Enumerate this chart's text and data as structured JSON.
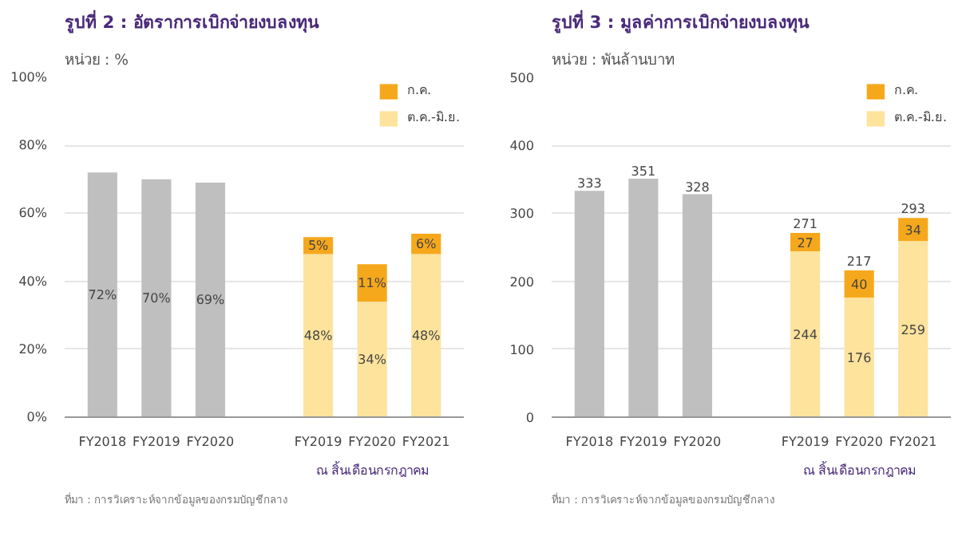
{
  "chart_data": [
    {
      "type": "bar",
      "title": "รูปที่ 2 : อัตราการเบิกจ่ายงบลงทุน",
      "subtitle": "หน่วย : %",
      "categories": [
        "FY2018",
        "FY2019",
        "FY2020",
        null,
        "FY2019",
        "FY2020",
        "FY2021"
      ],
      "stacked": true,
      "series": [
        {
          "color": "#bfbfbf",
          "values": [
            72,
            70,
            69,
            null,
            null,
            null,
            null
          ],
          "value_labels": [
            "72%",
            "70%",
            "69%",
            null,
            null,
            null,
            null
          ]
        },
        {
          "name": "ต.ค.-มิ.ย.",
          "color": "#fde39c",
          "values": [
            null,
            null,
            null,
            null,
            48,
            34,
            48
          ],
          "value_labels": [
            null,
            null,
            null,
            null,
            "48%",
            "34%",
            "48%"
          ]
        },
        {
          "name": "ก.ค.",
          "color": "#f6a81c",
          "values": [
            null,
            null,
            null,
            null,
            5,
            11,
            6
          ],
          "value_labels": [
            null,
            null,
            null,
            null,
            "5%",
            "11%",
            "6%"
          ]
        }
      ],
      "ylim": [
        0,
        100
      ],
      "yticks": [
        {
          "value": 0,
          "label": "0%"
        },
        {
          "value": 20,
          "label": "20%"
        },
        {
          "value": 40,
          "label": "40%"
        },
        {
          "value": 60,
          "label": "60%"
        },
        {
          "value": 80,
          "label": "80%"
        },
        {
          "value": 100,
          "label": "100%"
        }
      ],
      "grid": "y",
      "legend": "top right",
      "annotations": [
        "ณ สิ้นเดือนกรกฎาคม",
        "ที่มา : การวิเคราะห์จากข้อมูลของกรมบัญชีกลาง"
      ]
    },
    {
      "type": "bar",
      "title": "รูปที่ 3 : มูลค่าการเบิกจ่ายงบลงทุน",
      "subtitle": "หน่วย : พันล้านบาท",
      "categories": [
        "FY2018",
        "FY2019",
        "FY2020",
        null,
        "FY2019",
        "FY2020",
        "FY2021"
      ],
      "stacked": true,
      "series": [
        {
          "color": "#bfbfbf",
          "values": [
            333,
            351,
            328,
            null,
            null,
            null,
            null
          ],
          "value_labels": [
            "333",
            "351",
            "328",
            null,
            null,
            null,
            null
          ]
        },
        {
          "name": "ต.ค.-มิ.ย.",
          "color": "#fde39c",
          "values": [
            null,
            null,
            null,
            null,
            244,
            176,
            259
          ],
          "value_labels": [
            null,
            null,
            null,
            null,
            "244",
            "176",
            "259"
          ]
        },
        {
          "name": "ก.ค.",
          "color": "#f6a81c",
          "values": [
            null,
            null,
            null,
            null,
            27,
            40,
            34
          ],
          "value_labels": [
            null,
            null,
            null,
            null,
            "27",
            "40",
            "34"
          ]
        }
      ],
      "totals": [
        null,
        null,
        null,
        null,
        "271",
        "217",
        "293"
      ],
      "ylim": [
        0,
        500
      ],
      "yticks": [
        0,
        100,
        200,
        300,
        400,
        500
      ],
      "grid": "y",
      "legend": "top right",
      "annotations": [
        "ณ สิ้นเดือนกรกฎาคม",
        "ที่มา : การวิเคราะห์จากข้อมูลของกรมบัญชีกลาง"
      ]
    }
  ]
}
